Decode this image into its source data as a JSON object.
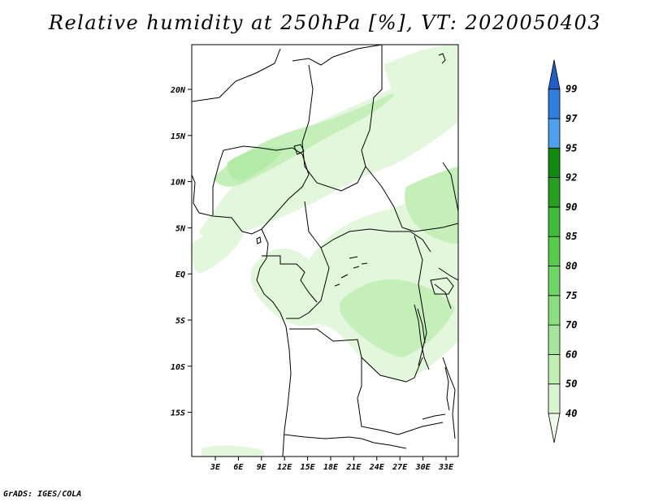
{
  "title": "Relative humidity at 250hPa [%], VT: 2020050403",
  "footer": "GrADS: IGES/COLA",
  "map": {
    "lat_ticks": [
      "20N",
      "15N",
      "10N",
      "5N",
      "EQ",
      "5S",
      "10S",
      "15S"
    ],
    "lon_ticks": [
      "3E",
      "6E",
      "9E",
      "12E",
      "15E",
      "18E",
      "21E",
      "24E",
      "27E",
      "30E",
      "33E"
    ]
  },
  "colorbar": {
    "levels": [
      "40",
      "50",
      "60",
      "70",
      "75",
      "80",
      "85",
      "90",
      "92",
      "95",
      "97",
      "99"
    ],
    "colors": [
      "#eefbe9",
      "#d7f5ce",
      "#bfefb3",
      "#a5e79a",
      "#8ae07f",
      "#6ed764",
      "#55cc4a",
      "#3cbd35",
      "#249f1f",
      "#0f8a0f",
      "#4ea1ee",
      "#2e7ee0",
      "#1e60c8"
    ]
  },
  "colors": {
    "land_outline": "#000000",
    "humid_light": "#e2f7db",
    "humid_mid": "#c4efb8",
    "humid_dark": "#a9e69d"
  }
}
